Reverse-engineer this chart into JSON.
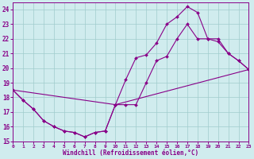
{
  "bg_color": "#d0ecee",
  "grid_color": "#a0cccc",
  "line_color": "#880088",
  "xlim": [
    0,
    23
  ],
  "ylim": [
    15,
    24.5
  ],
  "xticks": [
    0,
    1,
    2,
    3,
    4,
    5,
    6,
    7,
    8,
    9,
    10,
    11,
    12,
    13,
    14,
    15,
    16,
    17,
    18,
    19,
    20,
    21,
    22,
    23
  ],
  "yticks": [
    15,
    16,
    17,
    18,
    19,
    20,
    21,
    22,
    23,
    24
  ],
  "xlabel": "Windchill (Refroidissement éolien,°C)",
  "line1_x": [
    0,
    1,
    2,
    3,
    4,
    5,
    6,
    7,
    8,
    9,
    10,
    11,
    12,
    13,
    14,
    15,
    16,
    17,
    18,
    19,
    20,
    21,
    22,
    23
  ],
  "line1_y": [
    18.5,
    17.8,
    17.2,
    16.4,
    16.0,
    15.7,
    15.6,
    15.3,
    15.6,
    15.7,
    17.5,
    19.2,
    20.7,
    20.9,
    21.7,
    23.0,
    23.5,
    24.2,
    23.8,
    22.0,
    21.8,
    21.0,
    20.5,
    19.9
  ],
  "line2_x": [
    0,
    10,
    23
  ],
  "line2_y": [
    18.5,
    17.5,
    19.9
  ],
  "line3_x": [
    0,
    1,
    2,
    3,
    4,
    5,
    6,
    7,
    8,
    9,
    10,
    11,
    12,
    13,
    14,
    15,
    16,
    17,
    18,
    19,
    20,
    21,
    22,
    23
  ],
  "line3_y": [
    18.5,
    17.8,
    17.2,
    16.4,
    16.0,
    15.7,
    15.6,
    15.3,
    15.6,
    15.7,
    17.5,
    17.5,
    17.5,
    19.0,
    20.5,
    20.8,
    22.0,
    23.0,
    22.0,
    22.0,
    22.0,
    21.0,
    20.5,
    19.9
  ]
}
